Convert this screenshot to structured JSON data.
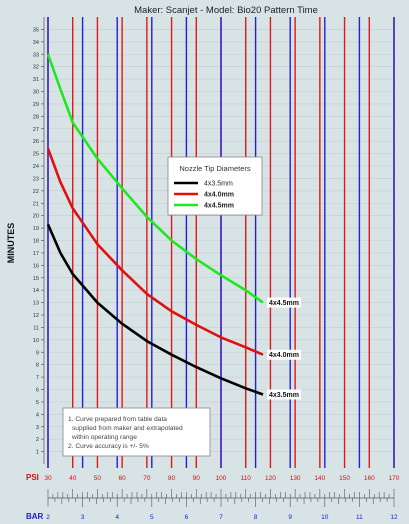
{
  "chart_data": {
    "type": "line",
    "title": "Maker: Scanjet  -  Model: Bio20 Pattern Time",
    "ylabel": "MINUTES",
    "ylim": [
      0,
      36
    ],
    "y_ticks": [
      1,
      2,
      3,
      4,
      5,
      6,
      7,
      8,
      9,
      10,
      11,
      12,
      13,
      14,
      15,
      16,
      17,
      18,
      19,
      20,
      21,
      22,
      23,
      24,
      25,
      26,
      27,
      28,
      29,
      30,
      31,
      32,
      33,
      34,
      35
    ],
    "x_axis": {
      "label": "PSI",
      "range": [
        30,
        170
      ],
      "ticks": [
        30,
        40,
        50,
        60,
        70,
        80,
        90,
        100,
        110,
        120,
        130,
        140,
        150,
        160,
        170
      ]
    },
    "x2_axis": {
      "label": "BAR",
      "range": [
        2,
        12
      ],
      "ticks": [
        2,
        3,
        4,
        5,
        6,
        7,
        8,
        9,
        10,
        11,
        12
      ]
    },
    "grid": {
      "psi_lines_color": "#e01818",
      "bar_lines_color": "#2020d8"
    },
    "legend": {
      "title": "Nozzle Tip Diameters",
      "placement": "center",
      "entries": [
        {
          "label": "4x3.5mm",
          "color": "#000000"
        },
        {
          "label": "4x4.0mm",
          "color": "#e01010"
        },
        {
          "label": "4x4.5mm",
          "color": "#1ee81e"
        }
      ]
    },
    "series": [
      {
        "name": "4x3.5mm",
        "color": "#000000",
        "x": [
          30,
          35,
          40,
          50,
          60,
          70,
          80,
          90,
          100,
          110,
          117
        ],
        "y": [
          19.3,
          17.0,
          15.3,
          13.0,
          11.3,
          9.9,
          8.8,
          7.8,
          6.9,
          6.1,
          5.6
        ],
        "end_label": "4x3.5mm"
      },
      {
        "name": "4x4.0mm",
        "color": "#e01010",
        "x": [
          30,
          35,
          40,
          50,
          60,
          70,
          80,
          90,
          100,
          110,
          117
        ],
        "y": [
          25.4,
          22.7,
          20.6,
          17.7,
          15.6,
          13.7,
          12.3,
          11.2,
          10.2,
          9.4,
          8.8
        ],
        "end_label": "4x4.0mm"
      },
      {
        "name": "4x4.5mm",
        "color": "#1ee81e",
        "x": [
          30,
          35,
          40,
          50,
          60,
          70,
          80,
          90,
          100,
          110,
          117
        ],
        "y": [
          33.0,
          30.2,
          27.5,
          24.6,
          22.2,
          19.9,
          18.0,
          16.5,
          15.2,
          14.0,
          13.0
        ],
        "end_label": "4x4.5mm"
      }
    ],
    "notes": [
      "1. Curve prepared from table data",
      "supplied from maker and extrapolated",
      "within operating range",
      "2. Curve accuracy is +/- 5%"
    ]
  }
}
